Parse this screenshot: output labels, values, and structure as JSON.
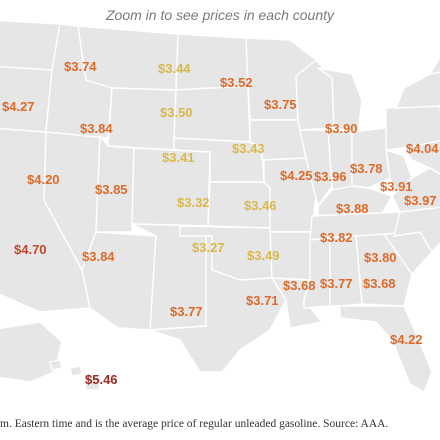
{
  "header": {
    "hint": "Zoom in to see prices in each county"
  },
  "footnote": "m. Eastern time and is the average price of regular unleaded gasoline. Source: AAA.",
  "colors": {
    "low": "#d9b84a",
    "mid": "#e8a33c",
    "high": "#dd6b2a",
    "very_high": "#c4472a",
    "extreme": "#9e2a22"
  },
  "labels": [
    {
      "text": "$3.74",
      "tier": "high"
    },
    {
      "text": "$3.44",
      "tier": "low"
    },
    {
      "text": "$3.52",
      "tier": "high"
    },
    {
      "text": "$4.27",
      "tier": "high"
    },
    {
      "text": "$3.75",
      "tier": "high"
    },
    {
      "text": "$3.50",
      "tier": "low"
    },
    {
      "text": "$3.84",
      "tier": "high"
    },
    {
      "text": "$3.90",
      "tier": "high"
    },
    {
      "text": "$4.04",
      "tier": "high"
    },
    {
      "text": "$3.41",
      "tier": "low"
    },
    {
      "text": "$3.43",
      "tier": "low"
    },
    {
      "text": "$4.25",
      "tier": "high"
    },
    {
      "text": "$3.96",
      "tier": "high"
    },
    {
      "text": "$3.78",
      "tier": "high"
    },
    {
      "text": "$4.20",
      "tier": "high"
    },
    {
      "text": "$3.85",
      "tier": "high"
    },
    {
      "text": "$3.91",
      "tier": "high"
    },
    {
      "text": "$3.97",
      "tier": "high"
    },
    {
      "text": "$3.32",
      "tier": "low"
    },
    {
      "text": "$3.46",
      "tier": "low"
    },
    {
      "text": "$3.88",
      "tier": "high"
    },
    {
      "text": "$3.82",
      "tier": "high"
    },
    {
      "text": "$4.70",
      "tier": "very_high"
    },
    {
      "text": "$3.27",
      "tier": "low"
    },
    {
      "text": "$3.84",
      "tier": "high"
    },
    {
      "text": "$3.49",
      "tier": "low"
    },
    {
      "text": "$3.80",
      "tier": "high"
    },
    {
      "text": "$3.68",
      "tier": "high"
    },
    {
      "text": "$3.77",
      "tier": "high"
    },
    {
      "text": "$3.68",
      "tier": "high"
    },
    {
      "text": "$3.71",
      "tier": "high"
    },
    {
      "text": "$3.77",
      "tier": "high"
    },
    {
      "text": "$4.22",
      "tier": "high"
    },
    {
      "text": "$5.46",
      "tier": "extreme"
    }
  ]
}
